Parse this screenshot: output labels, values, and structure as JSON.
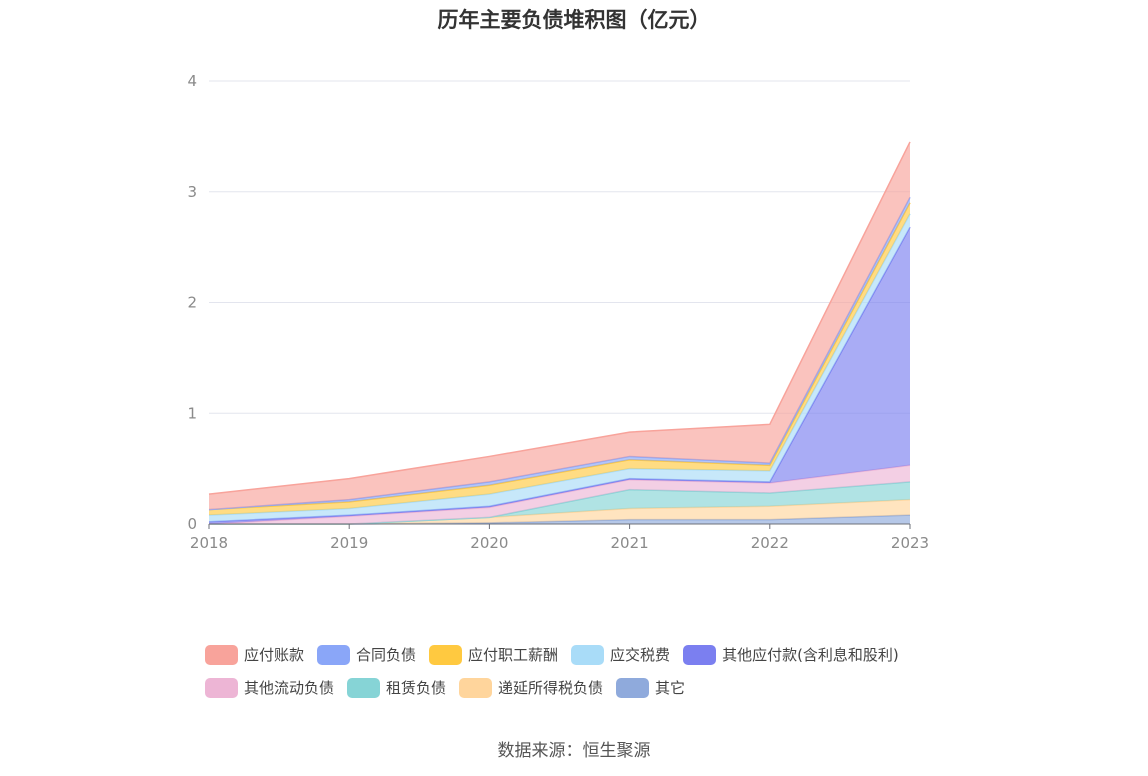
{
  "title": "历年主要负债堆积图（亿元）",
  "source": "数据来源：恒生聚源",
  "chart_data": {
    "type": "area",
    "stacked": true,
    "x": [
      "2018",
      "2019",
      "2020",
      "2021",
      "2022",
      "2023"
    ],
    "ylim": [
      0,
      4
    ],
    "yticks": [
      "0",
      "1",
      "2",
      "3",
      "4"
    ],
    "grid": true,
    "legend_position": "bottom",
    "series": [
      {
        "name": "其它",
        "color": "#8FAADC",
        "values": [
          0.0,
          0.0,
          0.01,
          0.04,
          0.04,
          0.08
        ]
      },
      {
        "name": "递延所得税负债",
        "color": "#FFD59C",
        "values": [
          0.0,
          0.0,
          0.05,
          0.1,
          0.12,
          0.14
        ]
      },
      {
        "name": "租赁负债",
        "color": "#86D4D6",
        "values": [
          0.0,
          0.0,
          0.0,
          0.17,
          0.12,
          0.16
        ]
      },
      {
        "name": "其他流动负债",
        "color": "#EDB5D5",
        "values": [
          0.0,
          0.07,
          0.09,
          0.09,
          0.09,
          0.15
        ]
      },
      {
        "name": "其他应付款(含利息和股利)",
        "color": "#7B7FF0",
        "values": [
          0.02,
          0.01,
          0.01,
          0.01,
          0.01,
          2.15
        ]
      },
      {
        "name": "应交税费",
        "color": "#A9DCF8",
        "values": [
          0.06,
          0.06,
          0.11,
          0.09,
          0.1,
          0.12
        ]
      },
      {
        "name": "应付职工薪酬",
        "color": "#FFC940",
        "values": [
          0.05,
          0.06,
          0.08,
          0.08,
          0.05,
          0.1
        ]
      },
      {
        "name": "合同负债",
        "color": "#8AA6F8",
        "values": [
          0.0,
          0.02,
          0.03,
          0.03,
          0.02,
          0.05
        ]
      },
      {
        "name": "应付账款",
        "color": "#F8A39B",
        "values": [
          0.14,
          0.19,
          0.23,
          0.22,
          0.35,
          0.5
        ]
      }
    ]
  },
  "legend_rows": [
    [
      "应付账款",
      "合同负债",
      "应付职工薪酬",
      "应交税费",
      "其他应付款(含利息和股利)"
    ],
    [
      "其他流动负债",
      "租赁负债",
      "递延所得税负债",
      "其它"
    ]
  ]
}
